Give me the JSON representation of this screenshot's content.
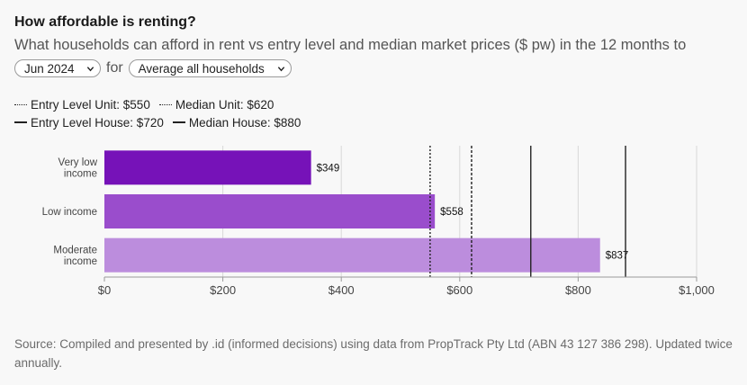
{
  "title": "How affordable is renting?",
  "subtitle": "What households can afford in rent vs entry level and median market prices ($ pw) in the 12 months to",
  "controls": {
    "period_value": "Jun 2024",
    "for_text": "for",
    "household_value": "Average all households"
  },
  "legend": [
    {
      "label": "Entry Level Unit: $550",
      "style": "dotted-fine"
    },
    {
      "label": "Median Unit: $620",
      "style": "dotted"
    },
    {
      "label": "Entry Level House: $720",
      "style": "solid"
    },
    {
      "label": "Median House: $880",
      "style": "solid"
    }
  ],
  "colors": {
    "very_low": "#7612b8",
    "low": "#9a4dcc",
    "moderate": "#bc8ddd",
    "gridline": "#d8d8d8",
    "axis": "#9a9a9a",
    "ref_line": "#222222"
  },
  "chart_data": {
    "type": "bar",
    "orientation": "horizontal",
    "categories": [
      [
        "Very low",
        "income"
      ],
      [
        "Low income"
      ],
      [
        "Moderate",
        "income"
      ]
    ],
    "values": [
      349,
      558,
      837
    ],
    "value_labels": [
      "$349",
      "$558",
      "$837"
    ],
    "xlim": [
      0,
      1000
    ],
    "xticks": [
      0,
      200,
      400,
      600,
      800,
      1000
    ],
    "xtick_labels": [
      "$0",
      "$200",
      "$400",
      "$600",
      "$800",
      "$1,000"
    ],
    "reference_lines": [
      {
        "value": 550,
        "style": "dotted-fine"
      },
      {
        "value": 620,
        "style": "dotted"
      },
      {
        "value": 720,
        "style": "solid"
      },
      {
        "value": 880,
        "style": "solid"
      }
    ],
    "grid": true,
    "legend_position": "top-left"
  },
  "footer": "Source: Compiled and presented by .id (informed decisions) using data from PropTrack Pty Ltd (ABN 43 127 386 298). Updated twice annually."
}
